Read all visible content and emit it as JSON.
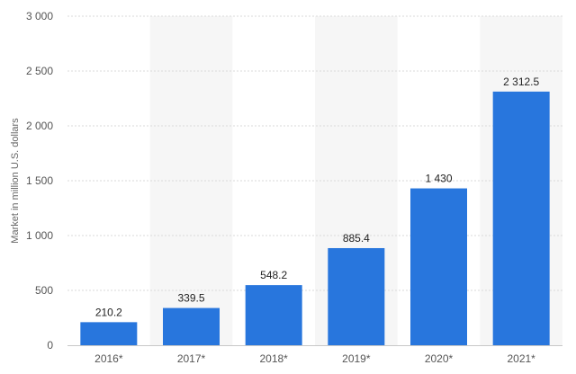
{
  "chart_data": {
    "type": "bar",
    "categories": [
      "2016*",
      "2017*",
      "2018*",
      "2019*",
      "2020*",
      "2021*"
    ],
    "values": [
      210.2,
      339.5,
      548.2,
      885.4,
      1430,
      2312.5
    ],
    "value_labels": [
      "210.2",
      "339.5",
      "548.2",
      "885.4",
      "1 430",
      "2 312.5"
    ],
    "title": "",
    "xlabel": "",
    "ylabel": "Market in million U.S. dollars",
    "ylim": [
      0,
      3000
    ],
    "y_ticks": [
      0,
      500,
      1000,
      1500,
      2000,
      2500,
      3000
    ],
    "y_tick_labels": [
      "0",
      "500",
      "1 000",
      "1 500",
      "2 000",
      "2 500",
      "3 000"
    ],
    "grid": true,
    "legend": false,
    "bar_color": "#2876dd",
    "alternating_band_color": "#f6f6f6"
  }
}
